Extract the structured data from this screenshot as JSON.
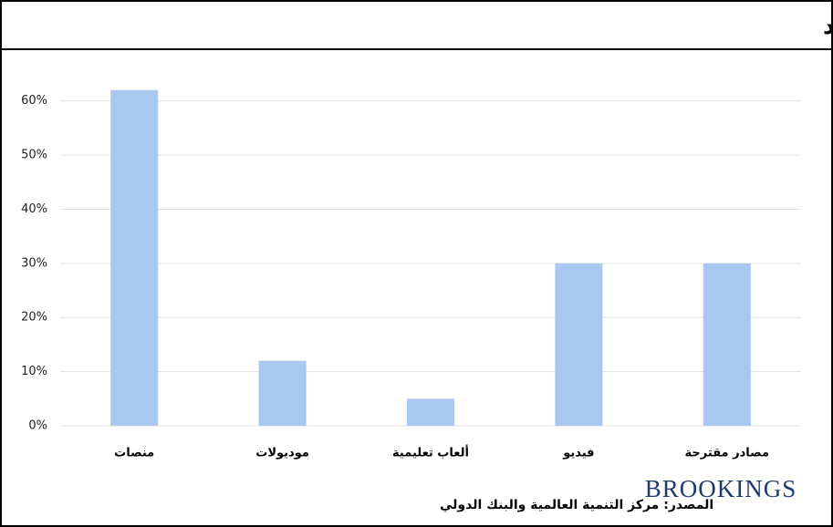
{
  "chart_data": {
    "type": "bar",
    "title": "التباين في الدعم الفني التعليمي الحكومي للمعلمين خلال التعلم عن بعد",
    "categories": [
      "منصات",
      "موديولات",
      "ألعاب تعليمية",
      "فيديو",
      "مصادر مقترحة"
    ],
    "values": [
      62,
      12,
      5,
      30,
      30
    ],
    "color": "#a9c8f0",
    "ylim": [
      0,
      65
    ],
    "yticks": [
      {
        "value": 0,
        "label": "0%"
      },
      {
        "value": 10,
        "label": "10%"
      },
      {
        "value": 20,
        "label": "20%"
      },
      {
        "value": 30,
        "label": "30%"
      },
      {
        "value": 40,
        "label": "40%"
      },
      {
        "value": 50,
        "label": "50%"
      },
      {
        "value": 60,
        "label": "60%"
      }
    ],
    "grid": true,
    "source": "المصدر: مركز التنمية العالمية والبنك الدولي",
    "logo": "BROOKINGS"
  }
}
